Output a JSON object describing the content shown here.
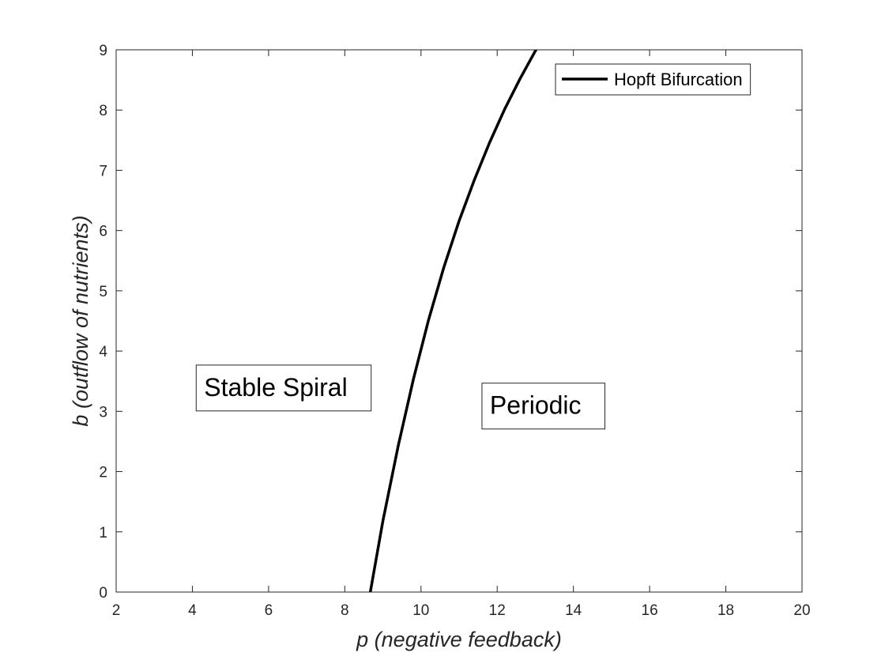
{
  "chart_data": {
    "type": "line",
    "xlabel": "p (negative feedback)",
    "ylabel": "b (outflow of nutrients)",
    "xlim": [
      2,
      20
    ],
    "ylim": [
      0,
      9
    ],
    "xticks": [
      2,
      4,
      6,
      8,
      10,
      12,
      14,
      16,
      18,
      20
    ],
    "yticks": [
      0,
      1,
      2,
      3,
      4,
      5,
      6,
      7,
      8,
      9
    ],
    "grid": false,
    "legend_position": "top-right",
    "series": [
      {
        "name": "Hopft Bifurcation",
        "color": "#000000",
        "x": [
          8.67,
          9.0,
          9.4,
          9.8,
          10.2,
          10.6,
          11.0,
          11.4,
          11.8,
          12.2,
          12.6,
          13.0,
          13.4,
          13.55
        ],
        "y": [
          0.0,
          1.18,
          2.42,
          3.53,
          4.52,
          5.39,
          6.16,
          6.84,
          7.46,
          8.02,
          8.52,
          8.98,
          9.39,
          9.55
        ]
      }
    ],
    "annotations": [
      {
        "text": "Stable Spiral",
        "x": 4.1,
        "y": 3.4
      },
      {
        "text": "Periodic",
        "x": 11.6,
        "y": 3.1
      }
    ]
  }
}
